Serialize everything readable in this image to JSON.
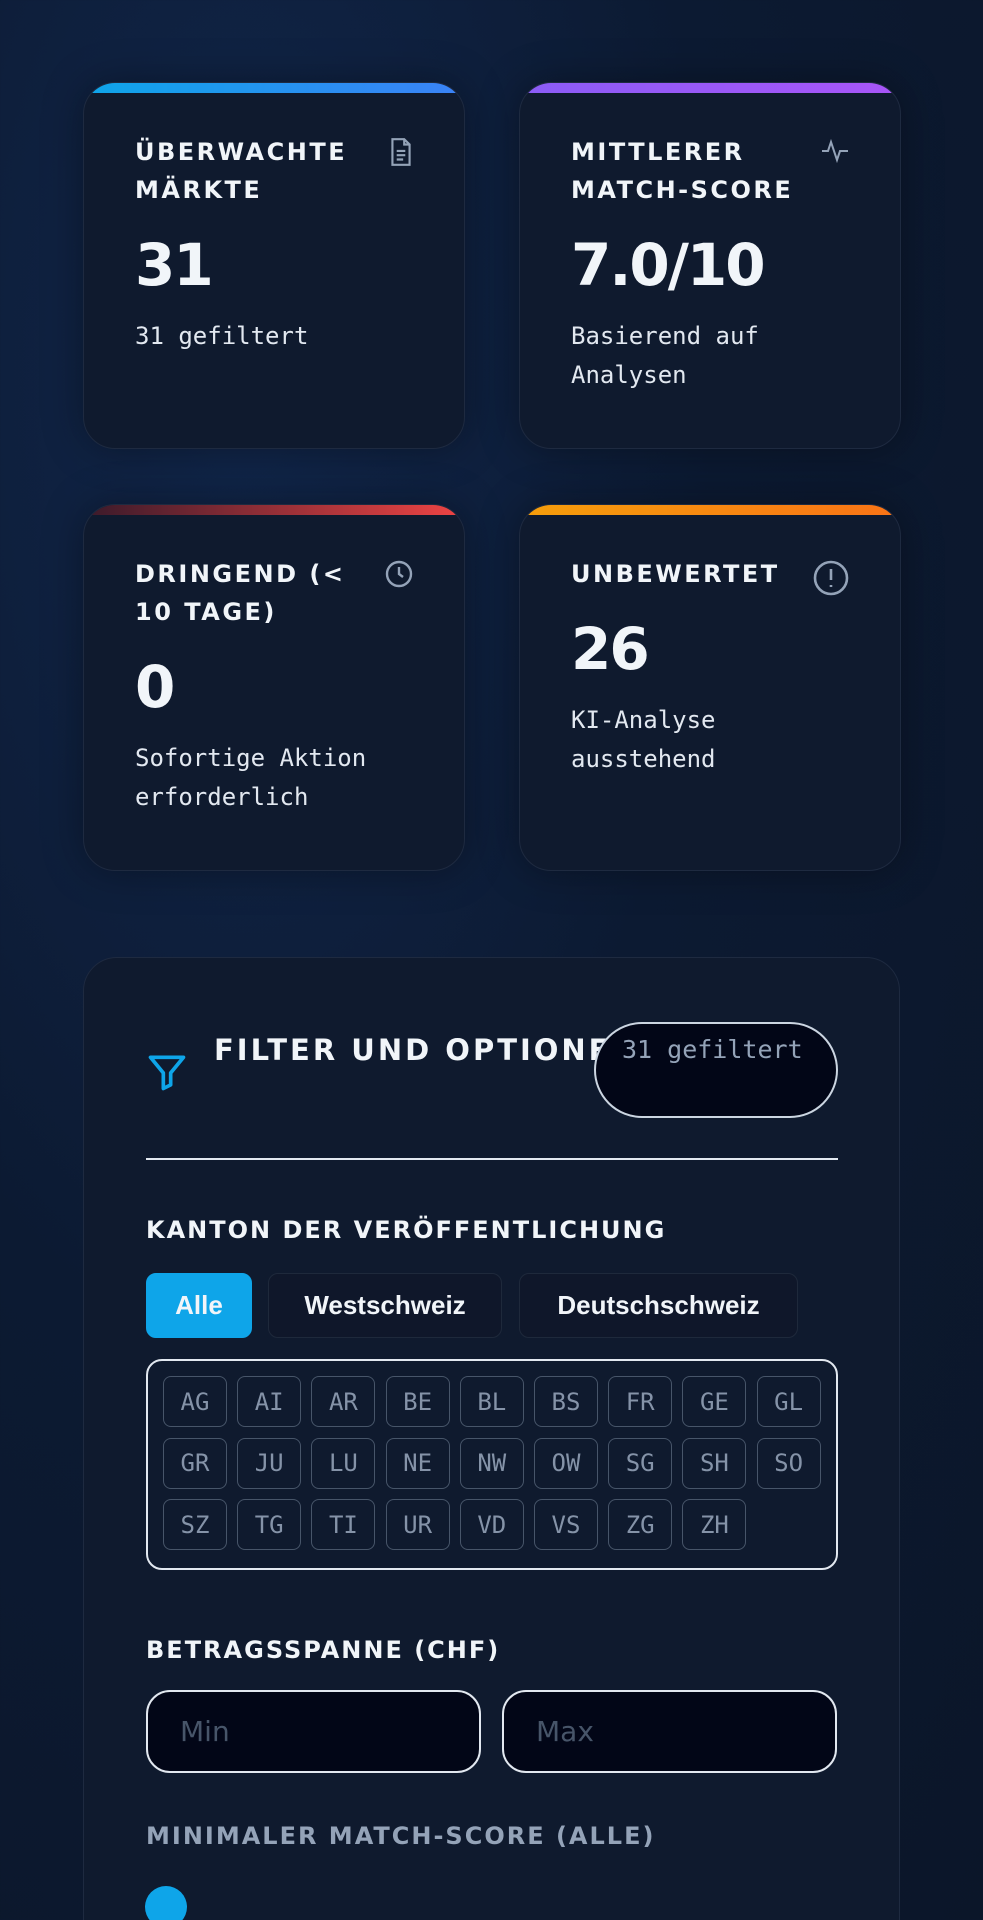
{
  "cards": [
    {
      "title": "ÜBERWACHTE MÄRKTE",
      "value": "31",
      "subtitle": "31 gefiltert"
    },
    {
      "title": "MITTLERER MATCH-SCORE",
      "value": "7.0/10",
      "subtitle": "Basierend auf Analysen"
    },
    {
      "title": "DRINGEND (< 10 TAGE)",
      "value": "0",
      "subtitle": "Sofortige Aktion erforderlich"
    },
    {
      "title": "UNBEWERTET",
      "value": "26",
      "subtitle": "KI-Analyse ausstehend"
    }
  ],
  "filter": {
    "title": "FILTER UND OPTIONEN",
    "badge": "31 gefiltert",
    "canton_label": "KANTON DER VERÖFFENTLICHUNG",
    "regions": [
      "Alle",
      "Westschweiz",
      "Deutschschweiz"
    ],
    "cantons": [
      "AG",
      "AI",
      "AR",
      "BE",
      "BL",
      "BS",
      "FR",
      "GE",
      "GL",
      "GR",
      "JU",
      "LU",
      "NE",
      "NW",
      "OW",
      "SG",
      "SH",
      "SO",
      "SZ",
      "TG",
      "TI",
      "UR",
      "VD",
      "VS",
      "ZG",
      "ZH"
    ],
    "amount_label": "BETRAGSSPANNE (CHF)",
    "min_placeholder": "Min",
    "max_placeholder": "Max",
    "score_label": "MINIMALER MATCH-SCORE (ALLE)"
  }
}
